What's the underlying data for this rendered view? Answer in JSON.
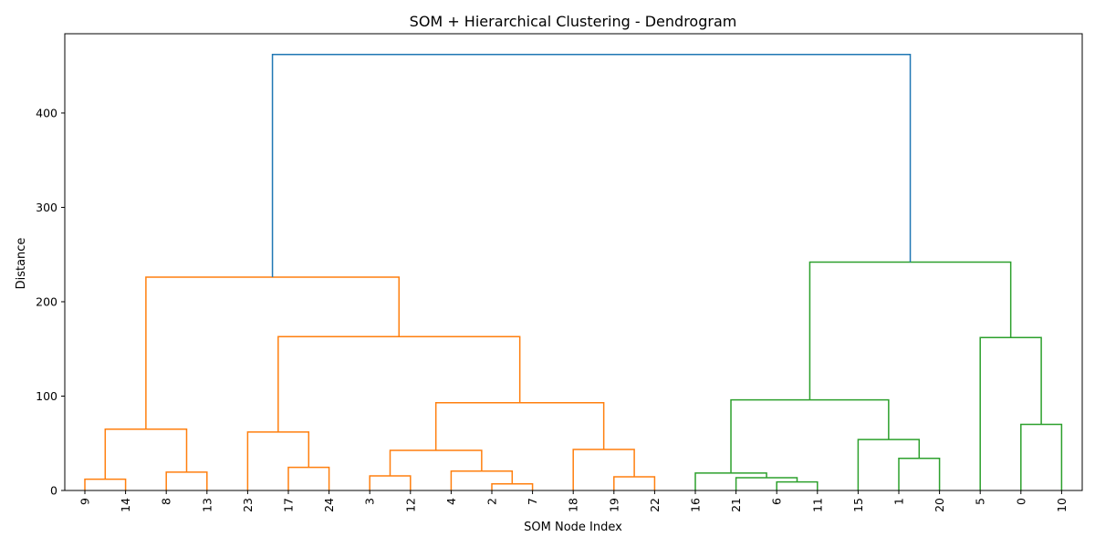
{
  "chart_data": {
    "type": "dendrogram",
    "title": "SOM + Hierarchical Clustering - Dendrogram",
    "xlabel": "SOM Node Index",
    "ylabel": "Distance",
    "ylim": [
      0,
      484
    ],
    "yticks": [
      0,
      100,
      200,
      300,
      400
    ],
    "grid": false,
    "leaf_order": [
      "9",
      "14",
      "8",
      "13",
      "23",
      "17",
      "24",
      "3",
      "12",
      "4",
      "2",
      "7",
      "18",
      "19",
      "22",
      "16",
      "21",
      "6",
      "11",
      "15",
      "1",
      "20",
      "5",
      "0",
      "10"
    ],
    "colors": {
      "cluster_orange": "#ff7f0e",
      "cluster_green": "#2ca02c",
      "root_blue": "#1f77b4"
    },
    "links": [
      {
        "id": "a",
        "left": "L:9",
        "right": "L:14",
        "height": 12,
        "color": "orange"
      },
      {
        "id": "b",
        "left": "L:8",
        "right": "L:13",
        "height": 19.5,
        "color": "orange"
      },
      {
        "id": "c",
        "left": "N:a",
        "right": "N:b",
        "height": 65,
        "color": "orange"
      },
      {
        "id": "d",
        "left": "L:17",
        "right": "L:24",
        "height": 24.5,
        "color": "orange"
      },
      {
        "id": "e",
        "left": "L:23",
        "right": "N:d",
        "height": 62,
        "color": "orange"
      },
      {
        "id": "f",
        "left": "L:3",
        "right": "L:12",
        "height": 15.5,
        "color": "orange"
      },
      {
        "id": "g",
        "left": "L:2",
        "right": "L:7",
        "height": 7,
        "color": "orange"
      },
      {
        "id": "h",
        "left": "L:4",
        "right": "N:g",
        "height": 20.5,
        "color": "orange"
      },
      {
        "id": "i",
        "left": "N:f",
        "right": "N:h",
        "height": 42.5,
        "color": "orange"
      },
      {
        "id": "j",
        "left": "L:19",
        "right": "L:22",
        "height": 14.5,
        "color": "orange"
      },
      {
        "id": "k",
        "left": "L:18",
        "right": "N:j",
        "height": 43.5,
        "color": "orange"
      },
      {
        "id": "l",
        "left": "N:i",
        "right": "N:k",
        "height": 93,
        "color": "orange"
      },
      {
        "id": "m",
        "left": "N:e",
        "right": "N:l",
        "height": 163,
        "color": "orange"
      },
      {
        "id": "n",
        "left": "N:c",
        "right": "N:m",
        "height": 226,
        "color": "orange"
      },
      {
        "id": "o",
        "left": "L:11",
        "right": "L:6",
        "height": 9,
        "color": "green"
      },
      {
        "id": "p",
        "left": "L:21",
        "right": "N:o",
        "height": 13.5,
        "color": "green"
      },
      {
        "id": "q",
        "left": "L:16",
        "right": "N:p",
        "height": 18.5,
        "color": "green"
      },
      {
        "id": "r",
        "left": "L:1",
        "right": "L:20",
        "height": 34,
        "color": "green"
      },
      {
        "id": "s",
        "left": "L:15",
        "right": "N:r",
        "height": 54,
        "color": "green"
      },
      {
        "id": "t",
        "left": "N:q",
        "right": "N:s",
        "height": 96,
        "color": "green"
      },
      {
        "id": "u",
        "left": "L:0",
        "right": "L:10",
        "height": 70,
        "color": "green"
      },
      {
        "id": "v",
        "left": "L:5",
        "right": "N:u",
        "height": 162,
        "color": "green"
      },
      {
        "id": "w",
        "left": "N:t",
        "right": "N:v",
        "height": 242,
        "color": "green"
      },
      {
        "id": "x",
        "left": "N:n",
        "right": "N:w",
        "height": 462,
        "color": "blue"
      }
    ]
  }
}
